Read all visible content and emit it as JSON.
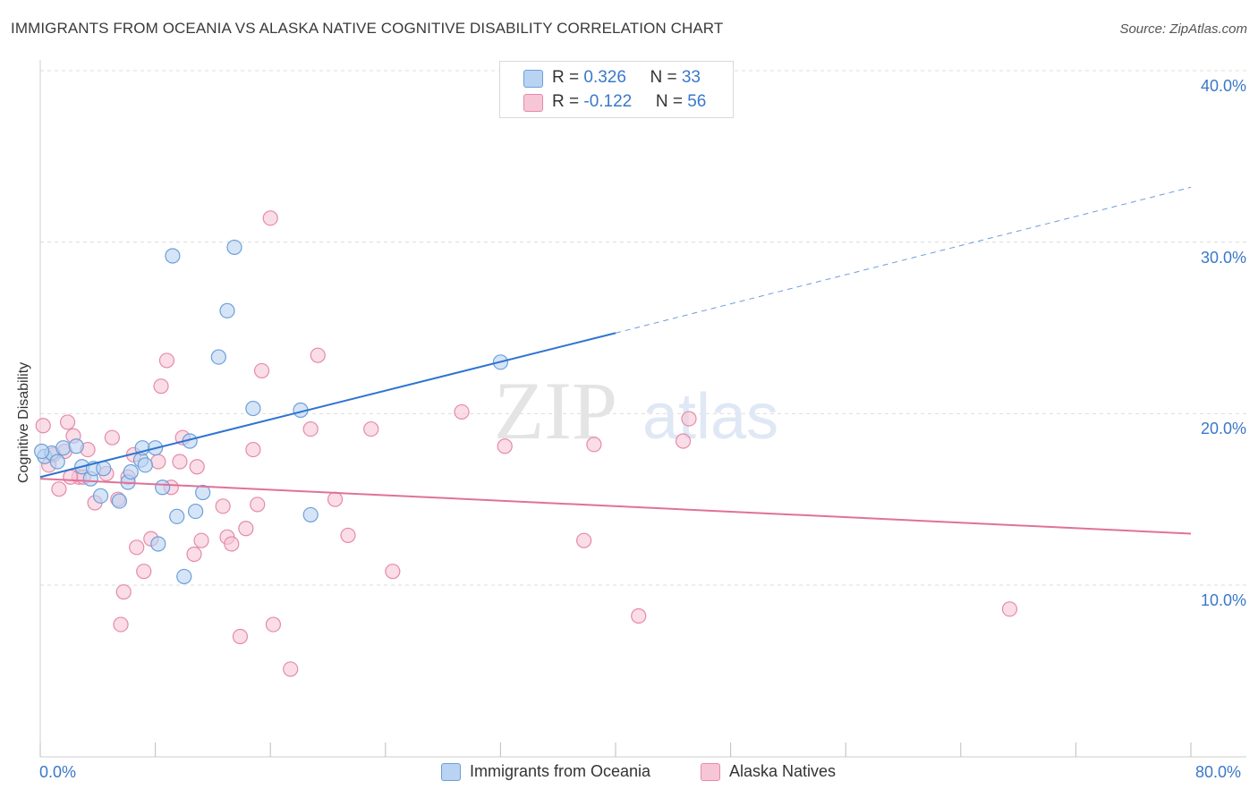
{
  "title": "IMMIGRANTS FROM OCEANIA VS ALASKA NATIVE COGNITIVE DISABILITY CORRELATION CHART",
  "source": "Source: ZipAtlas.com",
  "watermark": {
    "zip": "ZIP",
    "atlas": "atlas"
  },
  "legend_top": {
    "rows": [
      {
        "r_label": "R = ",
        "r_value": "0.326",
        "n_label": "N = ",
        "n_value": "33"
      },
      {
        "r_label": "R = ",
        "r_value": "-0.122",
        "n_label": "N = ",
        "n_value": "56"
      }
    ]
  },
  "colors": {
    "blue_fill": "#b9d3f2",
    "blue_stroke": "#6c9fd8",
    "blue_line": "#2f74d0",
    "pink_fill": "#f7c6d6",
    "pink_stroke": "#e58aaa",
    "pink_line": "#e0719a",
    "grid": "#dcdcdc",
    "tick_text": "#3a78c9"
  },
  "chart_data": {
    "type": "scatter",
    "title": "IMMIGRANTS FROM OCEANIA VS ALASKA NATIVE COGNITIVE DISABILITY CORRELATION CHART",
    "xlabel": "",
    "ylabel": "Cognitive Disability",
    "xlim": [
      0,
      80
    ],
    "ylim": [
      0,
      42
    ],
    "x_tick_labels": [
      "0.0%",
      "80.0%"
    ],
    "y_ticks": [
      10,
      20,
      30,
      40
    ],
    "y_tick_labels": [
      "10.0%",
      "20.0%",
      "30.0%",
      "40.0%"
    ],
    "legend_position": "bottom-center",
    "series": [
      {
        "name": "Immigrants from Oceania",
        "color": "#6c9fd8",
        "trend": {
          "x": [
            0,
            40
          ],
          "y": [
            16.3,
            24.7
          ],
          "dashed_to": [
            80,
            33.2
          ]
        },
        "points": [
          [
            0.3,
            17.5
          ],
          [
            0.8,
            17.7
          ],
          [
            1.2,
            17.2
          ],
          [
            1.6,
            18.0
          ],
          [
            2.5,
            18.1
          ],
          [
            2.9,
            16.9
          ],
          [
            3.5,
            16.2
          ],
          [
            3.7,
            16.8
          ],
          [
            4.2,
            15.2
          ],
          [
            4.4,
            16.8
          ],
          [
            5.5,
            14.9
          ],
          [
            6.1,
            16.0
          ],
          [
            6.3,
            16.6
          ],
          [
            7.0,
            17.3
          ],
          [
            7.1,
            18.0
          ],
          [
            7.3,
            17.0
          ],
          [
            8.0,
            18.0
          ],
          [
            8.2,
            12.4
          ],
          [
            8.5,
            15.7
          ],
          [
            9.2,
            29.2
          ],
          [
            9.5,
            14.0
          ],
          [
            10.0,
            10.5
          ],
          [
            10.4,
            18.4
          ],
          [
            10.8,
            14.3
          ],
          [
            11.3,
            15.4
          ],
          [
            12.4,
            23.3
          ],
          [
            13.0,
            26.0
          ],
          [
            13.5,
            29.7
          ],
          [
            14.8,
            20.3
          ],
          [
            18.1,
            20.2
          ],
          [
            18.8,
            14.1
          ],
          [
            32.0,
            23.0
          ],
          [
            0.1,
            17.8
          ]
        ]
      },
      {
        "name": "Alaska Natives",
        "color": "#e58aaa",
        "trend": {
          "x": [
            0,
            80
          ],
          "y": [
            16.2,
            13.0
          ]
        },
        "points": [
          [
            0.2,
            19.3
          ],
          [
            0.6,
            17.0
          ],
          [
            1.3,
            15.6
          ],
          [
            1.7,
            17.8
          ],
          [
            1.9,
            19.5
          ],
          [
            2.3,
            18.7
          ],
          [
            2.7,
            16.3
          ],
          [
            3.0,
            16.3
          ],
          [
            3.3,
            17.9
          ],
          [
            3.8,
            14.8
          ],
          [
            4.6,
            16.5
          ],
          [
            5.0,
            18.6
          ],
          [
            5.4,
            15.0
          ],
          [
            5.6,
            7.7
          ],
          [
            5.8,
            9.6
          ],
          [
            6.1,
            16.3
          ],
          [
            6.5,
            17.6
          ],
          [
            6.7,
            12.2
          ],
          [
            7.2,
            10.8
          ],
          [
            7.7,
            12.7
          ],
          [
            8.2,
            17.2
          ],
          [
            8.4,
            21.6
          ],
          [
            8.8,
            23.1
          ],
          [
            9.1,
            15.7
          ],
          [
            9.7,
            17.2
          ],
          [
            9.9,
            18.6
          ],
          [
            10.7,
            11.8
          ],
          [
            10.9,
            16.9
          ],
          [
            11.2,
            12.6
          ],
          [
            12.7,
            14.6
          ],
          [
            13.0,
            12.8
          ],
          [
            13.3,
            12.4
          ],
          [
            13.9,
            7.0
          ],
          [
            14.3,
            13.3
          ],
          [
            14.8,
            17.9
          ],
          [
            15.1,
            14.7
          ],
          [
            15.4,
            22.5
          ],
          [
            16.0,
            31.4
          ],
          [
            16.2,
            7.7
          ],
          [
            17.4,
            5.1
          ],
          [
            18.8,
            19.1
          ],
          [
            19.3,
            23.4
          ],
          [
            20.5,
            15.0
          ],
          [
            21.4,
            12.9
          ],
          [
            23.0,
            19.1
          ],
          [
            24.5,
            10.8
          ],
          [
            29.3,
            20.1
          ],
          [
            32.3,
            18.1
          ],
          [
            37.8,
            12.6
          ],
          [
            38.5,
            18.2
          ],
          [
            41.6,
            8.2
          ],
          [
            44.7,
            18.4
          ],
          [
            45.1,
            19.7
          ],
          [
            67.4,
            8.6
          ],
          [
            0.9,
            17.6
          ],
          [
            2.1,
            16.3
          ]
        ]
      }
    ]
  }
}
